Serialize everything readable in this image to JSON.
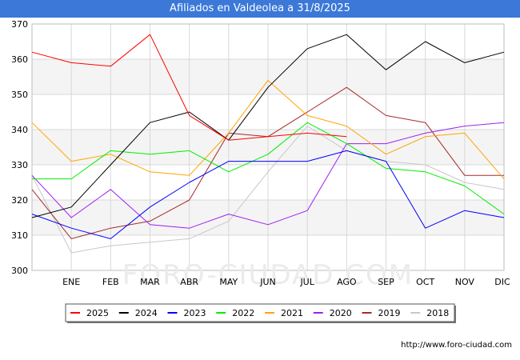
{
  "title": "Afiliados en Valdeolea a 31/8/2025",
  "watermark": "FORO-CIUDAD.COM",
  "footer": "http://www.foro-ciudad.com",
  "chart_data": {
    "type": "line",
    "title": "Afiliados en Valdeolea a 31/8/2025",
    "categories": [
      "ENE",
      "FEB",
      "MAR",
      "ABR",
      "MAY",
      "JUN",
      "JUL",
      "AGO",
      "SEP",
      "OCT",
      "NOV",
      "DIC"
    ],
    "y_ticks": [
      300,
      310,
      320,
      330,
      340,
      350,
      360,
      370
    ],
    "ylim": [
      300,
      370
    ],
    "grid": true,
    "legend_position": "bottom",
    "series": [
      {
        "name": "2025",
        "color": "#ff0000",
        "start": 362,
        "values": [
          359,
          358,
          367,
          344,
          337,
          338,
          339,
          338,
          null,
          null,
          null,
          null
        ]
      },
      {
        "name": "2024",
        "color": "#000000",
        "start": 315,
        "values": [
          318,
          330,
          342,
          345,
          337,
          352,
          363,
          367,
          357,
          365,
          359,
          362
        ]
      },
      {
        "name": "2023",
        "color": "#0000ff",
        "start": 316,
        "values": [
          312,
          309,
          318,
          325,
          331,
          331,
          331,
          334,
          331,
          312,
          317,
          315
        ]
      },
      {
        "name": "2022",
        "color": "#00ee00",
        "start": 326,
        "values": [
          326,
          334,
          333,
          334,
          328,
          333,
          342,
          336,
          329,
          328,
          324,
          316
        ]
      },
      {
        "name": "2021",
        "color": "#ffa500",
        "start": 342,
        "values": [
          331,
          333,
          328,
          327,
          339,
          354,
          344,
          341,
          333,
          338,
          339,
          326
        ]
      },
      {
        "name": "2020",
        "color": "#a020f0",
        "start": 327,
        "values": [
          315,
          323,
          313,
          312,
          316,
          313,
          317,
          336,
          336,
          339,
          341,
          342
        ]
      },
      {
        "name": "2019",
        "color": "#a52a2a",
        "start": 323,
        "values": [
          309,
          312,
          314,
          320,
          339,
          338,
          345,
          352,
          344,
          342,
          327,
          327
        ]
      },
      {
        "name": "2018",
        "color": "#c8c8c8",
        "start": 327,
        "values": [
          305,
          307,
          308,
          309,
          314,
          328,
          341,
          334,
          331,
          330,
          325,
          323
        ]
      }
    ]
  }
}
